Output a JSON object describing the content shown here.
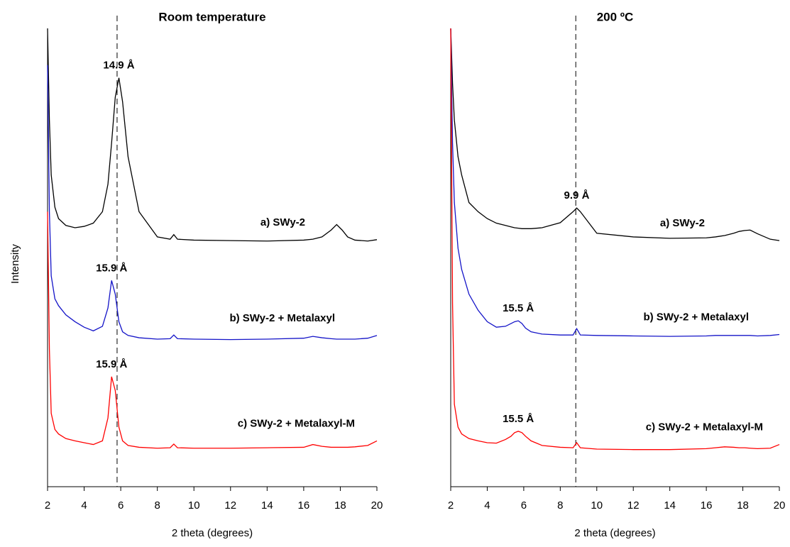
{
  "chart_data": [
    {
      "type": "line",
      "title": "Room temperature",
      "x_label": "2 theta (degrees)",
      "y_label": "Intensity",
      "xlim": [
        2,
        20
      ],
      "xticks": [
        2,
        4,
        6,
        8,
        10,
        12,
        14,
        16,
        18,
        20
      ],
      "ylim": [
        0,
        100
      ],
      "reference_line": 5.8,
      "x": [
        2,
        2.1,
        2.2,
        2.4,
        2.6,
        3,
        3.5,
        4,
        4.5,
        5,
        5.3,
        5.5,
        5.7,
        5.9,
        6.1,
        6.4,
        7,
        8,
        8.7,
        8.9,
        9.1,
        10,
        12,
        14,
        16,
        16.5,
        17,
        17.5,
        17.8,
        18.1,
        18.4,
        18.8,
        19.5,
        20
      ],
      "series": [
        {
          "name": "a) SWy-2",
          "color": "#000000",
          "peak_label": "14.9 Å",
          "values": [
            100,
            80,
            68,
            61,
            58.5,
            57,
            56.5,
            56.8,
            57.5,
            60,
            66,
            75,
            85,
            89.2,
            84,
            72,
            60,
            54.5,
            54,
            55,
            54,
            53.8,
            53.7,
            53.6,
            53.8,
            54,
            54.5,
            56,
            57.2,
            56,
            54.5,
            53.8,
            53.6,
            53.9
          ]
        },
        {
          "name": "b) SWy-2 + Metalaxyl",
          "color": "#1414c8",
          "peak_label": "15.9 Å",
          "values": [
            92,
            60,
            46,
            41,
            39.5,
            37.5,
            36,
            34.8,
            34,
            35,
            39,
            45,
            42,
            36,
            33.8,
            33,
            32.5,
            32.2,
            32.3,
            33.1,
            32.3,
            32.2,
            32.1,
            32.2,
            32.4,
            32.8,
            32.5,
            32.3,
            32.2,
            32.2,
            32.2,
            32.2,
            32.4,
            33
          ]
        },
        {
          "name": "c) SWy-2 + Metalaxyl-M",
          "color": "#ff0000",
          "peak_label": "15.9 Å",
          "values": [
            60,
            30,
            16,
            12.5,
            11.5,
            10.5,
            10,
            9.6,
            9.2,
            10,
            15,
            24,
            21,
            13,
            10,
            9,
            8.6,
            8.4,
            8.5,
            9.3,
            8.5,
            8.4,
            8.4,
            8.5,
            8.6,
            9.2,
            8.8,
            8.6,
            8.6,
            8.6,
            8.6,
            8.7,
            9,
            10
          ]
        }
      ]
    },
    {
      "type": "line",
      "title": "200 ºC",
      "x_label": "2 theta (degrees)",
      "xlim": [
        2,
        20
      ],
      "xticks": [
        2,
        4,
        6,
        8,
        10,
        12,
        14,
        16,
        18,
        20
      ],
      "ylim": [
        0,
        100
      ],
      "reference_line": 8.85,
      "x": [
        2,
        2.1,
        2.2,
        2.4,
        2.6,
        3,
        3.5,
        4,
        4.5,
        5,
        5.3,
        5.5,
        5.7,
        5.9,
        6.1,
        6.4,
        7,
        8,
        8.7,
        8.9,
        9.1,
        10,
        12,
        14,
        16,
        16.5,
        17,
        17.5,
        17.8,
        18.1,
        18.4,
        18.8,
        19.5,
        20
      ],
      "series": [
        {
          "name": "a) SWy-2",
          "color": "#000000",
          "peak_label": "9.9 Å",
          "values": [
            100,
            88,
            80,
            72,
            68,
            62,
            60,
            58.5,
            57.5,
            57,
            56.7,
            56.5,
            56.4,
            56.3,
            56.3,
            56.3,
            56.5,
            57.6,
            60,
            60.8,
            60,
            55.3,
            54.5,
            54.2,
            54.3,
            54.5,
            54.8,
            55.3,
            55.7,
            55.9,
            56,
            55.2,
            54,
            53.7
          ]
        },
        {
          "name": "b) SWy-2 + Metalaxyl",
          "color": "#1414c8",
          "peak_label": "15.5 Å",
          "values": [
            100,
            75,
            62,
            52,
            47.4,
            42,
            38.5,
            36,
            34.8,
            35,
            35.6,
            36,
            36.2,
            35.6,
            34.6,
            33.8,
            33.3,
            33.1,
            33.1,
            34.5,
            33.1,
            33,
            32.9,
            32.8,
            32.9,
            33,
            33,
            33,
            33,
            33,
            33,
            32.9,
            33,
            33.2
          ]
        },
        {
          "name": "c) SWy-2 + Metalaxyl-M",
          "color": "#ff0000",
          "peak_label": "15.5 Å",
          "values": [
            100,
            40,
            18,
            13,
            11.5,
            10.5,
            10,
            9.6,
            9.5,
            10.3,
            11,
            11.8,
            12.1,
            11.8,
            11,
            10,
            9,
            8.6,
            8.5,
            9.6,
            8.5,
            8.2,
            8.1,
            8.1,
            8.3,
            8.5,
            8.7,
            8.6,
            8.5,
            8.5,
            8.4,
            8.3,
            8.4,
            9.2
          ]
        }
      ]
    }
  ]
}
